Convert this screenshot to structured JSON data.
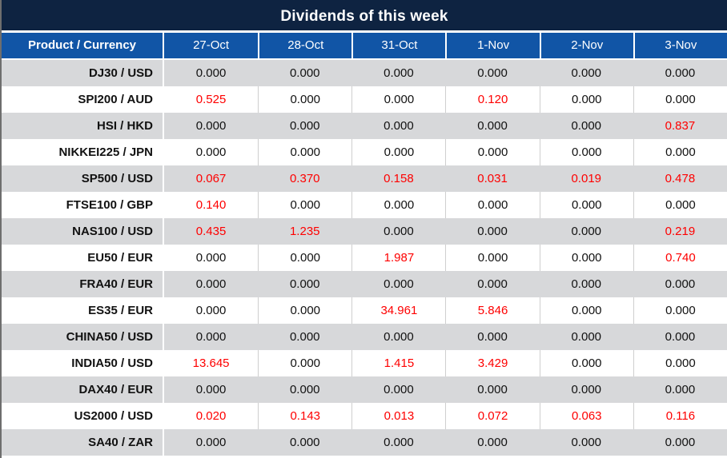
{
  "title": "Dividends of this week",
  "colors": {
    "title_bg": "#0E2341",
    "header_bg": "#1155A6",
    "stripe": "#D7D8DA",
    "ink": "#111111",
    "red": "#FE0000",
    "divider": "#CFCFCF",
    "edge": "#6E6E6E"
  },
  "table": {
    "header_label": "Product / Currency",
    "columns": [
      "27-Oct",
      "28-Oct",
      "31-Oct",
      "1-Nov",
      "2-Nov",
      "3-Nov"
    ],
    "rows": [
      {
        "product": "DJ30 / USD",
        "values": [
          "0.000",
          "0.000",
          "0.000",
          "0.000",
          "0.000",
          "0.000"
        ]
      },
      {
        "product": "SPI200 / AUD",
        "values": [
          "0.525",
          "0.000",
          "0.000",
          "0.120",
          "0.000",
          "0.000"
        ]
      },
      {
        "product": "HSI / HKD",
        "values": [
          "0.000",
          "0.000",
          "0.000",
          "0.000",
          "0.000",
          "0.837"
        ]
      },
      {
        "product": "NIKKEI225 / JPN",
        "values": [
          "0.000",
          "0.000",
          "0.000",
          "0.000",
          "0.000",
          "0.000"
        ]
      },
      {
        "product": "SP500 / USD",
        "values": [
          "0.067",
          "0.370",
          "0.158",
          "0.031",
          "0.019",
          "0.478"
        ]
      },
      {
        "product": "FTSE100 / GBP",
        "values": [
          "0.140",
          "0.000",
          "0.000",
          "0.000",
          "0.000",
          "0.000"
        ]
      },
      {
        "product": "NAS100 / USD",
        "values": [
          "0.435",
          "1.235",
          "0.000",
          "0.000",
          "0.000",
          "0.219"
        ]
      },
      {
        "product": "EU50 / EUR",
        "values": [
          "0.000",
          "0.000",
          "1.987",
          "0.000",
          "0.000",
          "0.740"
        ]
      },
      {
        "product": "FRA40 / EUR",
        "values": [
          "0.000",
          "0.000",
          "0.000",
          "0.000",
          "0.000",
          "0.000"
        ]
      },
      {
        "product": "ES35 / EUR",
        "values": [
          "0.000",
          "0.000",
          "34.961",
          "5.846",
          "0.000",
          "0.000"
        ]
      },
      {
        "product": "CHINA50 / USD",
        "values": [
          "0.000",
          "0.000",
          "0.000",
          "0.000",
          "0.000",
          "0.000"
        ]
      },
      {
        "product": "INDIA50 / USD",
        "values": [
          "13.645",
          "0.000",
          "1.415",
          "3.429",
          "0.000",
          "0.000"
        ]
      },
      {
        "product": "DAX40 / EUR",
        "values": [
          "0.000",
          "0.000",
          "0.000",
          "0.000",
          "0.000",
          "0.000"
        ]
      },
      {
        "product": "US2000 / USD",
        "values": [
          "0.020",
          "0.143",
          "0.013",
          "0.072",
          "0.063",
          "0.116"
        ]
      },
      {
        "product": "SA40 / ZAR",
        "values": [
          "0.000",
          "0.000",
          "0.000",
          "0.000",
          "0.000",
          "0.000"
        ]
      }
    ]
  }
}
